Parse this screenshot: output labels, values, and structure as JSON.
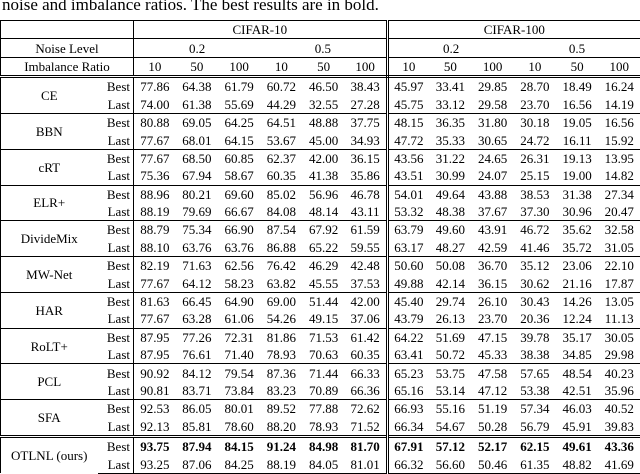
{
  "caption": "noise and imbalance ratios. The best results are in bold.",
  "header": {
    "datasets": [
      "CIFAR-10",
      "CIFAR-100"
    ],
    "noise_label": "Noise Level",
    "noise_levels": [
      "0.2",
      "0.5",
      "0.2",
      "0.5"
    ],
    "ratio_label": "Imbalance Ratio",
    "ratios": [
      "10",
      "50",
      "100",
      "10",
      "50",
      "100",
      "10",
      "50",
      "100",
      "10",
      "50",
      "100"
    ]
  },
  "table": {
    "methods": [
      {
        "name": "CE",
        "rows": [
          {
            "label": "Best",
            "values": [
              "77.86",
              "64.38",
              "61.79",
              "60.72",
              "46.50",
              "38.43",
              "45.97",
              "33.41",
              "29.85",
              "28.70",
              "18.49",
              "16.24"
            ]
          },
          {
            "label": "Last",
            "values": [
              "74.00",
              "61.38",
              "55.69",
              "44.29",
              "32.55",
              "27.28",
              "45.75",
              "33.12",
              "29.58",
              "23.70",
              "16.56",
              "14.19"
            ]
          }
        ]
      },
      {
        "name": "BBN",
        "rows": [
          {
            "label": "Best",
            "values": [
              "80.88",
              "69.05",
              "64.25",
              "64.51",
              "48.88",
              "37.75",
              "48.15",
              "36.35",
              "31.80",
              "30.18",
              "19.05",
              "16.56"
            ]
          },
          {
            "label": "Last",
            "values": [
              "77.67",
              "68.01",
              "64.15",
              "53.67",
              "45.00",
              "34.93",
              "47.72",
              "35.33",
              "30.65",
              "24.72",
              "16.11",
              "15.92"
            ]
          }
        ]
      },
      {
        "name": "cRT",
        "rows": [
          {
            "label": "Best",
            "values": [
              "77.67",
              "68.50",
              "60.85",
              "62.37",
              "42.00",
              "36.15",
              "43.56",
              "31.22",
              "24.65",
              "26.31",
              "19.13",
              "13.95"
            ]
          },
          {
            "label": "Last",
            "values": [
              "75.36",
              "67.94",
              "58.67",
              "60.35",
              "41.38",
              "35.86",
              "43.51",
              "30.99",
              "24.07",
              "25.15",
              "19.00",
              "14.82"
            ]
          }
        ]
      },
      {
        "name": "ELR+",
        "rows": [
          {
            "label": "Best",
            "values": [
              "88.96",
              "80.21",
              "69.60",
              "85.02",
              "56.96",
              "46.78",
              "54.01",
              "49.64",
              "43.88",
              "38.53",
              "31.38",
              "27.34"
            ]
          },
          {
            "label": "Last",
            "values": [
              "88.19",
              "79.69",
              "66.67",
              "84.08",
              "48.14",
              "43.11",
              "53.32",
              "48.38",
              "37.67",
              "37.30",
              "30.96",
              "20.47"
            ]
          }
        ]
      },
      {
        "name": "DivideMix",
        "rows": [
          {
            "label": "Best",
            "values": [
              "88.79",
              "75.34",
              "66.90",
              "87.54",
              "67.92",
              "61.59",
              "63.79",
              "49.60",
              "43.91",
              "46.72",
              "35.62",
              "32.58"
            ]
          },
          {
            "label": "Last",
            "values": [
              "88.10",
              "63.76",
              "63.76",
              "86.88",
              "65.22",
              "59.55",
              "63.17",
              "48.27",
              "42.59",
              "41.46",
              "35.72",
              "31.05"
            ]
          }
        ]
      },
      {
        "name": "MW-Net",
        "rows": [
          {
            "label": "Best",
            "values": [
              "82.19",
              "71.63",
              "62.56",
              "76.42",
              "46.29",
              "42.48",
              "50.60",
              "50.08",
              "36.70",
              "35.12",
              "23.06",
              "22.10"
            ]
          },
          {
            "label": "Last",
            "values": [
              "77.67",
              "64.12",
              "58.23",
              "63.82",
              "45.55",
              "37.53",
              "49.88",
              "42.14",
              "36.15",
              "30.62",
              "21.16",
              "17.87"
            ]
          }
        ]
      },
      {
        "name": "HAR",
        "rows": [
          {
            "label": "Best",
            "values": [
              "81.63",
              "66.45",
              "64.90",
              "69.00",
              "51.44",
              "42.00",
              "45.40",
              "29.74",
              "26.10",
              "30.43",
              "14.26",
              "13.05"
            ]
          },
          {
            "label": "Last",
            "values": [
              "77.67",
              "63.28",
              "61.06",
              "54.26",
              "49.15",
              "37.06",
              "43.79",
              "26.13",
              "23.70",
              "20.36",
              "12.24",
              "11.13"
            ]
          }
        ]
      },
      {
        "name": "RoLT+",
        "rows": [
          {
            "label": "Best",
            "values": [
              "87.95",
              "77.26",
              "72.31",
              "81.86",
              "71.53",
              "61.42",
              "64.22",
              "51.69",
              "47.15",
              "39.78",
              "35.17",
              "30.05"
            ]
          },
          {
            "label": "Last",
            "values": [
              "87.95",
              "76.61",
              "71.40",
              "78.93",
              "70.63",
              "60.35",
              "63.41",
              "50.72",
              "45.33",
              "38.38",
              "34.85",
              "29.98"
            ]
          }
        ]
      },
      {
        "name": "PCL",
        "rows": [
          {
            "label": "Best",
            "values": [
              "90.92",
              "84.12",
              "79.54",
              "87.36",
              "71.44",
              "66.33",
              "65.23",
              "53.75",
              "47.58",
              "57.65",
              "48.54",
              "40.23"
            ]
          },
          {
            "label": "Last",
            "values": [
              "90.81",
              "83.71",
              "73.84",
              "83.23",
              "70.89",
              "66.36",
              "65.16",
              "53.14",
              "47.12",
              "53.38",
              "42.51",
              "35.96"
            ]
          }
        ]
      },
      {
        "name": "SFA",
        "rows": [
          {
            "label": "Best",
            "values": [
              "92.53",
              "86.05",
              "80.01",
              "89.52",
              "77.88",
              "72.62",
              "66.93",
              "55.16",
              "51.19",
              "57.34",
              "46.03",
              "40.52"
            ]
          },
          {
            "label": "Last",
            "values": [
              "92.13",
              "85.81",
              "78.60",
              "88.20",
              "78.93",
              "71.52",
              "66.34",
              "54.67",
              "50.28",
              "56.79",
              "45.91",
              "39.83"
            ]
          }
        ]
      },
      {
        "name": "OTLNL (ours)",
        "rows": [
          {
            "label": "Best",
            "bold": true,
            "values": [
              "93.75",
              "87.94",
              "84.15",
              "91.24",
              "84.98",
              "81.70",
              "67.91",
              "57.12",
              "52.17",
              "62.15",
              "49.61",
              "43.36"
            ]
          },
          {
            "label": "Last",
            "values": [
              "93.25",
              "87.06",
              "84.25",
              "88.19",
              "84.05",
              "81.01",
              "66.32",
              "56.60",
              "50.46",
              "61.35",
              "48.82",
              "41.69"
            ]
          }
        ]
      }
    ]
  }
}
